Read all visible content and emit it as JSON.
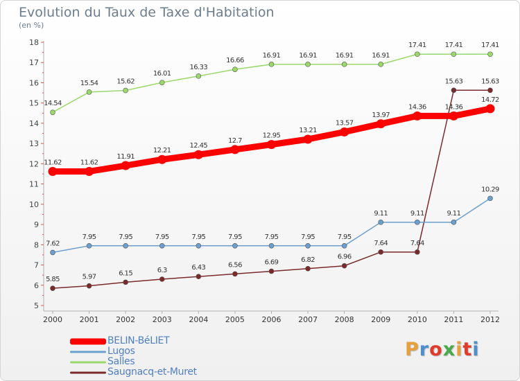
{
  "header": {
    "title": "Evolution du Taux de Taxe d'Habitation",
    "subtitle": "(en %)"
  },
  "logo": {
    "text": "Proxiti",
    "colors": [
      "#e8a13a",
      "#4a8fd0",
      "#e03a2a",
      "#4aa84a",
      "#e8a13a",
      "#e03a2a",
      "#4a8fd0"
    ]
  },
  "chart_data": {
    "type": "line",
    "title": "Evolution du Taux de Taxe d'Habitation",
    "subtitle": "(en %)",
    "xlabel": "",
    "ylabel": "",
    "categories": [
      "2000",
      "2001",
      "2002",
      "2003",
      "2004",
      "2005",
      "2006",
      "2007",
      "2008",
      "2009",
      "2010",
      "2011",
      "2012"
    ],
    "ylim": [
      5,
      18
    ],
    "yticks": [
      5,
      6,
      7,
      8,
      9,
      10,
      11,
      12,
      13,
      14,
      15,
      16,
      17,
      18
    ],
    "grid": false,
    "legend": "bottom-left",
    "series": [
      {
        "name": "BELIN-BéLIET",
        "color": "#ff0000",
        "emphasis": true,
        "values": [
          11.62,
          11.62,
          11.91,
          12.21,
          12.45,
          12.7,
          12.95,
          13.21,
          13.57,
          13.97,
          14.36,
          14.36,
          14.72
        ],
        "labels": [
          "11.62",
          "11.62",
          "11.91",
          "12.21",
          "12.45",
          "12.7",
          "12.95",
          "13.21",
          "13.57",
          "13.97",
          "14.36",
          "14.36",
          "14.72"
        ]
      },
      {
        "name": "Lugos",
        "color": "#6a9fcf",
        "values": [
          7.62,
          7.95,
          7.95,
          7.95,
          7.95,
          7.95,
          7.95,
          7.95,
          7.95,
          9.11,
          9.11,
          9.11,
          10.29
        ],
        "labels": [
          "7.62",
          "7.95",
          "7.95",
          "7.95",
          "7.95",
          "7.95",
          "7.95",
          "7.95",
          "7.95",
          "9.11",
          "9.11",
          "9.11",
          "10.29"
        ]
      },
      {
        "name": "Salles",
        "color": "#9ad86a",
        "values": [
          14.54,
          15.54,
          15.62,
          16.01,
          16.33,
          16.66,
          16.91,
          16.91,
          16.91,
          16.91,
          17.41,
          17.41,
          17.41
        ],
        "labels": [
          "14.54",
          "15.54",
          "15.62",
          "16.01",
          "16.33",
          "16.66",
          "16.91",
          "16.91",
          "16.91",
          "16.91",
          "17.41",
          "17.41",
          "17.41"
        ]
      },
      {
        "name": "Saugnacq-et-Muret",
        "color": "#7a2a2a",
        "values": [
          5.85,
          5.97,
          6.15,
          6.3,
          6.43,
          6.56,
          6.69,
          6.82,
          6.96,
          7.64,
          7.64,
          15.63,
          15.63
        ],
        "labels": [
          "5.85",
          "5.97",
          "6.15",
          "6.3",
          "6.43",
          "6.56",
          "6.69",
          "6.82",
          "6.96",
          "7.64",
          "7.64",
          "15.63",
          "15.63"
        ]
      }
    ]
  }
}
